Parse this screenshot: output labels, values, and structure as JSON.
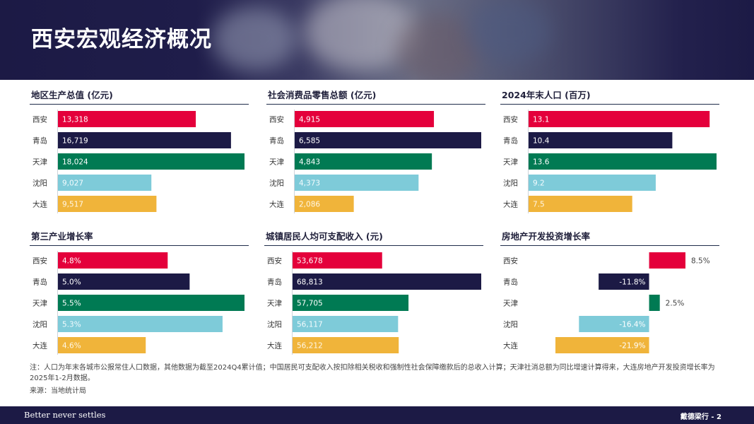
{
  "page": {
    "title": "西安宏观经济概况"
  },
  "colors": {
    "xian": "#e4003b",
    "qingdao": "#1c1a45",
    "tianjin": "#007a53",
    "shenyang": "#7ecbd9",
    "dalian": "#f0b43a"
  },
  "chart_data": [
    {
      "type": "bar",
      "title": "地区生产总值 (亿元)",
      "categories": [
        "西安",
        "青岛",
        "天津",
        "沈阳",
        "大连"
      ],
      "values": [
        13318,
        16719,
        18024,
        9027,
        9517
      ],
      "labels": [
        "13,318",
        "16,719",
        "18,024",
        "9,027",
        "9,517"
      ],
      "xlim": [
        0,
        18024
      ]
    },
    {
      "type": "bar",
      "title": "社会消费品零售总额 (亿元)",
      "categories": [
        "西安",
        "青岛",
        "天津",
        "沈阳",
        "大连"
      ],
      "values": [
        4915,
        6585,
        4843,
        4373,
        2086
      ],
      "labels": [
        "4,915",
        "6,585",
        "4,843",
        "4,373",
        "2,086"
      ],
      "xlim": [
        0,
        6585
      ]
    },
    {
      "type": "bar",
      "title": "2024年末人口 (百万)",
      "categories": [
        "西安",
        "青岛",
        "天津",
        "沈阳",
        "大连"
      ],
      "values": [
        13.1,
        10.4,
        13.6,
        9.2,
        7.5
      ],
      "labels": [
        "13.1",
        "10.4",
        "13.6",
        "9.2",
        "7.5"
      ],
      "xlim": [
        0,
        13.6
      ]
    },
    {
      "type": "bar",
      "title": "第三产业增长率",
      "categories": [
        "西安",
        "青岛",
        "天津",
        "沈阳",
        "大连"
      ],
      "values": [
        4.8,
        5.0,
        5.5,
        5.3,
        4.6
      ],
      "labels": [
        "4.8%",
        "5.0%",
        "5.5%",
        "5.3%",
        "4.6%"
      ],
      "xlim": [
        3.8,
        5.5
      ]
    },
    {
      "type": "bar",
      "title": "城镇居民人均可支配收入 (元)",
      "categories": [
        "西安",
        "青岛",
        "天津",
        "沈阳",
        "大连"
      ],
      "values": [
        53678,
        68813,
        57705,
        56117,
        56212
      ],
      "labels": [
        "53,678",
        "68,813",
        "57,705",
        "56,117",
        "56,212"
      ],
      "xlim": [
        40000,
        68813
      ]
    },
    {
      "type": "bar",
      "title": "房地产开发投资增长率",
      "categories": [
        "西安",
        "青岛",
        "天津",
        "沈阳",
        "大连"
      ],
      "values": [
        8.5,
        -11.8,
        2.5,
        -16.4,
        -21.9
      ],
      "labels": [
        "8.5%",
        "-11.8%",
        "2.5%",
        "-16.4%",
        "-21.9%"
      ],
      "xlim": [
        -21.9,
        8.5
      ]
    }
  ],
  "notes": {
    "note": "注：人口为年末各城市公报常住人口数据，其他数据为截至2024Q4累计值；中国居民可支配收入按扣除相关税收和强制性社会保障缴款后的总收入计算；天津社消总额为同比增速计算得来，大连房地产开发投资增长率为2025年1-2月数据。",
    "source": "来源：当地统计局"
  },
  "footer": {
    "tagline": "Better never settles",
    "page": "戴德梁行 - 2"
  }
}
